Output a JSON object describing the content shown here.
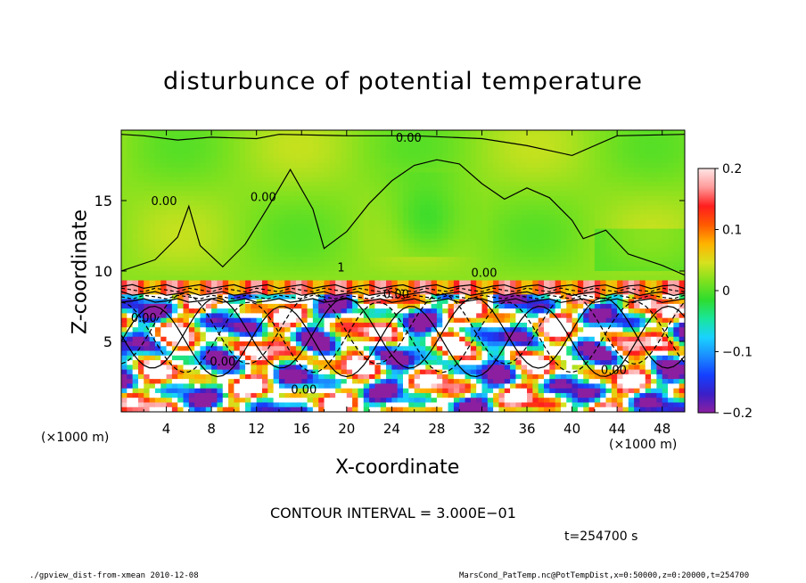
{
  "chart_data": {
    "type": "heatmap",
    "title": "disturbunce of potential temperature",
    "xlabel": "X-coordinate",
    "ylabel": "Z-coordinate",
    "x_unit_left": "(×1000 m)",
    "x_unit_right": "(×1000 m)",
    "xlim": [
      0,
      50
    ],
    "ylim": [
      0,
      20
    ],
    "x_ticks": [
      4,
      8,
      12,
      16,
      20,
      24,
      28,
      32,
      36,
      40,
      44,
      48
    ],
    "y_ticks": [
      5,
      10,
      15
    ],
    "colorbar": {
      "range": [
        -0.2,
        0.2
      ],
      "tick_values": [
        0.2,
        0.1,
        0,
        -0.1,
        -0.2
      ],
      "tick_labels": [
        "0.2",
        "0.1",
        "0",
        "−0.1",
        "−0.2"
      ]
    },
    "contour_labels": [
      {
        "text": "0.00",
        "x": 25.5,
        "z": 19.5
      },
      {
        "text": "0.00",
        "x": 3.8,
        "z": 15.0
      },
      {
        "text": "0.00",
        "x": 12.6,
        "z": 15.3
      },
      {
        "text": "1",
        "x": 19.5,
        "z": 10.3
      },
      {
        "text": "0.00",
        "x": 32.2,
        "z": 9.9
      },
      {
        "text": "0.00",
        "x": 2.0,
        "z": 6.7
      },
      {
        "text": "0.00",
        "x": 24.4,
        "z": 8.4
      },
      {
        "text": "0.00",
        "x": 9.0,
        "z": 3.6
      },
      {
        "text": "0.00",
        "x": 16.2,
        "z": 1.6
      },
      {
        "text": "0.00",
        "x": 43.7,
        "z": 3.0
      }
    ],
    "colorbar_colors": [
      "#8c1fa0",
      "#3a1fc8",
      "#1440ff",
      "#1b8cff",
      "#19d2ff",
      "#19e69b",
      "#2edc2e",
      "#7ee11e",
      "#d7e11e",
      "#ffb300",
      "#ff5a00",
      "#ff1e1e",
      "#ff9a9a",
      "#ffe6e6"
    ]
  },
  "annotations": {
    "contour_interval": "CONTOUR INTERVAL = 3.000E−01",
    "time": "t=254700 s"
  },
  "footer": {
    "left": "./gpview_dist-from-xmean   2010-12-08",
    "right": "MarsCond_PatTemp.nc@PotTempDist,x=0:50000,z=0:20000,t=254700"
  }
}
